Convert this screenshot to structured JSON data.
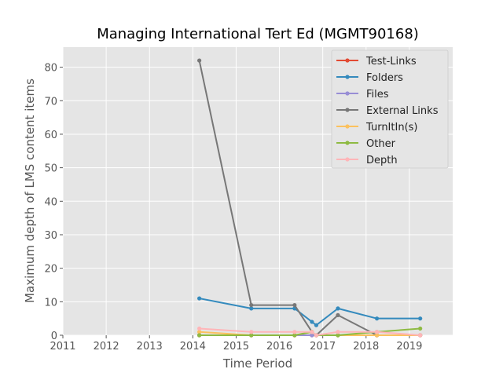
{
  "chart_data": {
    "type": "line",
    "title": "Managing International Tert Ed (MGMT90168)",
    "xlabel": "Time Period",
    "ylabel": "Maximum depth of LMS content items",
    "xlim": [
      2011.0,
      2020.0
    ],
    "ylim": [
      0,
      86
    ],
    "xticks": [
      2011,
      2012,
      2013,
      2014,
      2015,
      2016,
      2017,
      2018,
      2019
    ],
    "yticks": [
      0,
      10,
      20,
      30,
      40,
      50,
      60,
      70,
      80
    ],
    "grid": true,
    "legend_position": "top-right",
    "x": [
      2014.15,
      2015.35,
      2016.35,
      2016.75,
      2016.85,
      2017.35,
      2018.25,
      2019.25
    ],
    "series": [
      {
        "name": "Test-Links",
        "color": "#e24a33",
        "values": [
          0,
          0,
          0,
          0,
          0,
          0,
          0,
          0
        ]
      },
      {
        "name": "Folders",
        "color": "#348abd",
        "values": [
          11,
          8,
          8,
          4,
          3,
          8,
          5,
          5
        ]
      },
      {
        "name": "Files",
        "color": "#988ed5",
        "values": [
          0,
          0,
          0,
          0,
          0,
          0,
          0,
          0
        ]
      },
      {
        "name": "External Links",
        "color": "#777777",
        "values": [
          82,
          9,
          9,
          1,
          0,
          6,
          0,
          0
        ]
      },
      {
        "name": "TurnItIn(s)",
        "color": "#fbc15e",
        "values": [
          1,
          0,
          0,
          1,
          0,
          0,
          0,
          0
        ]
      },
      {
        "name": "Other",
        "color": "#8eba42",
        "values": [
          0,
          0,
          0,
          1,
          0,
          0,
          1,
          2
        ]
      },
      {
        "name": "Depth",
        "color": "#ffb5b8",
        "values": [
          2,
          1,
          1,
          1,
          0,
          1,
          1,
          0
        ]
      }
    ]
  }
}
